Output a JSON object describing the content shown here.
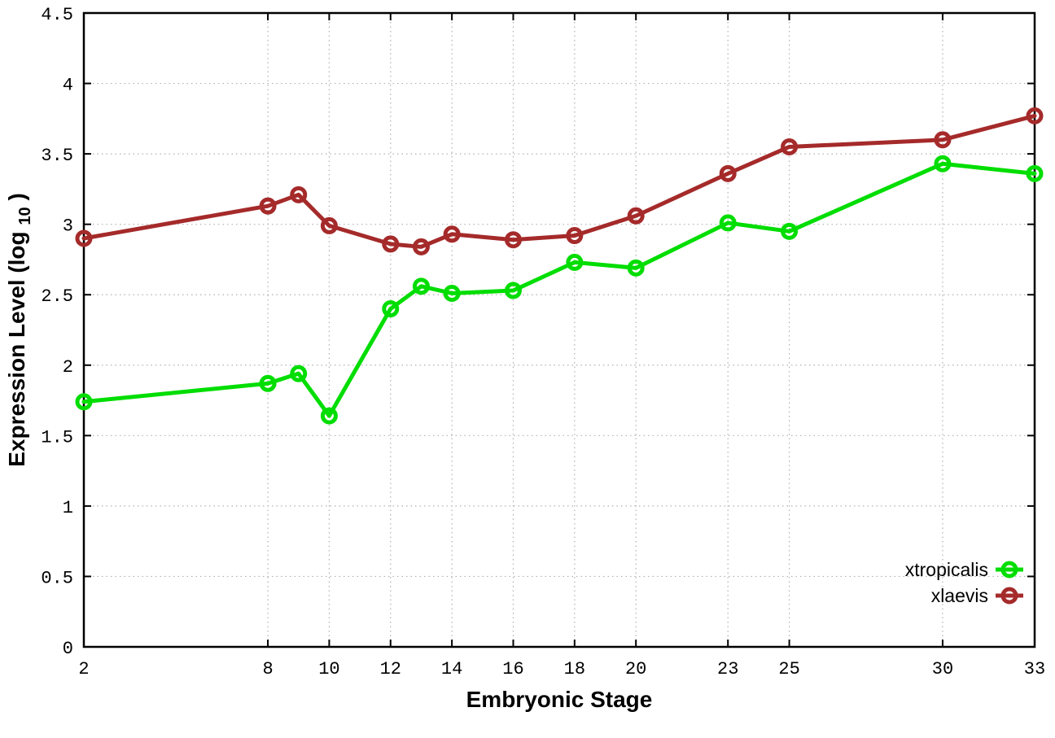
{
  "chart_data": {
    "type": "line",
    "title": "",
    "xlabel": "Embryonic Stage",
    "ylabel": "Expression Level (log10)",
    "ylabel_parts": {
      "main": "Expression Level (log",
      "sub": "10",
      "suffix": ")"
    },
    "xlim": [
      2,
      33
    ],
    "ylim": [
      0,
      4.5
    ],
    "grid": "dotted, both axes",
    "legend_position": "inside bottom-right",
    "x": [
      2,
      8,
      9,
      10,
      12,
      13,
      14,
      16,
      18,
      20,
      23,
      25,
      30,
      33
    ],
    "xtick_values": [
      2,
      8,
      10,
      12,
      14,
      16,
      18,
      20,
      23,
      25,
      30,
      33
    ],
    "xtick_labels": [
      "2",
      "8",
      "10",
      "12",
      "14",
      "16",
      "18",
      "20",
      "23",
      "25",
      "30",
      "33"
    ],
    "ytick_values": [
      0,
      0.5,
      1,
      1.5,
      2,
      2.5,
      3,
      3.5,
      4,
      4.5
    ],
    "ytick_labels": [
      "0",
      "0.5",
      "1",
      "1.5",
      "2",
      "2.5",
      "3",
      "3.5",
      "4",
      "4.5"
    ],
    "series": [
      {
        "name": "xtropicalis",
        "color": "#00dd00",
        "marker": "open-circle",
        "values": [
          1.74,
          1.87,
          1.94,
          1.64,
          2.4,
          2.56,
          2.51,
          2.53,
          2.73,
          2.69,
          3.01,
          2.95,
          3.43,
          3.36
        ]
      },
      {
        "name": "xlaevis",
        "color": "#a52a2a",
        "marker": "open-circle",
        "values": [
          2.9,
          3.13,
          3.21,
          2.99,
          2.86,
          2.84,
          2.93,
          2.89,
          2.92,
          3.06,
          3.36,
          3.55,
          3.6,
          3.77
        ]
      }
    ]
  },
  "colors": {
    "background": "#ffffff",
    "axis": "#000000",
    "grid": "#b0b0b0",
    "text": "#000000"
  }
}
